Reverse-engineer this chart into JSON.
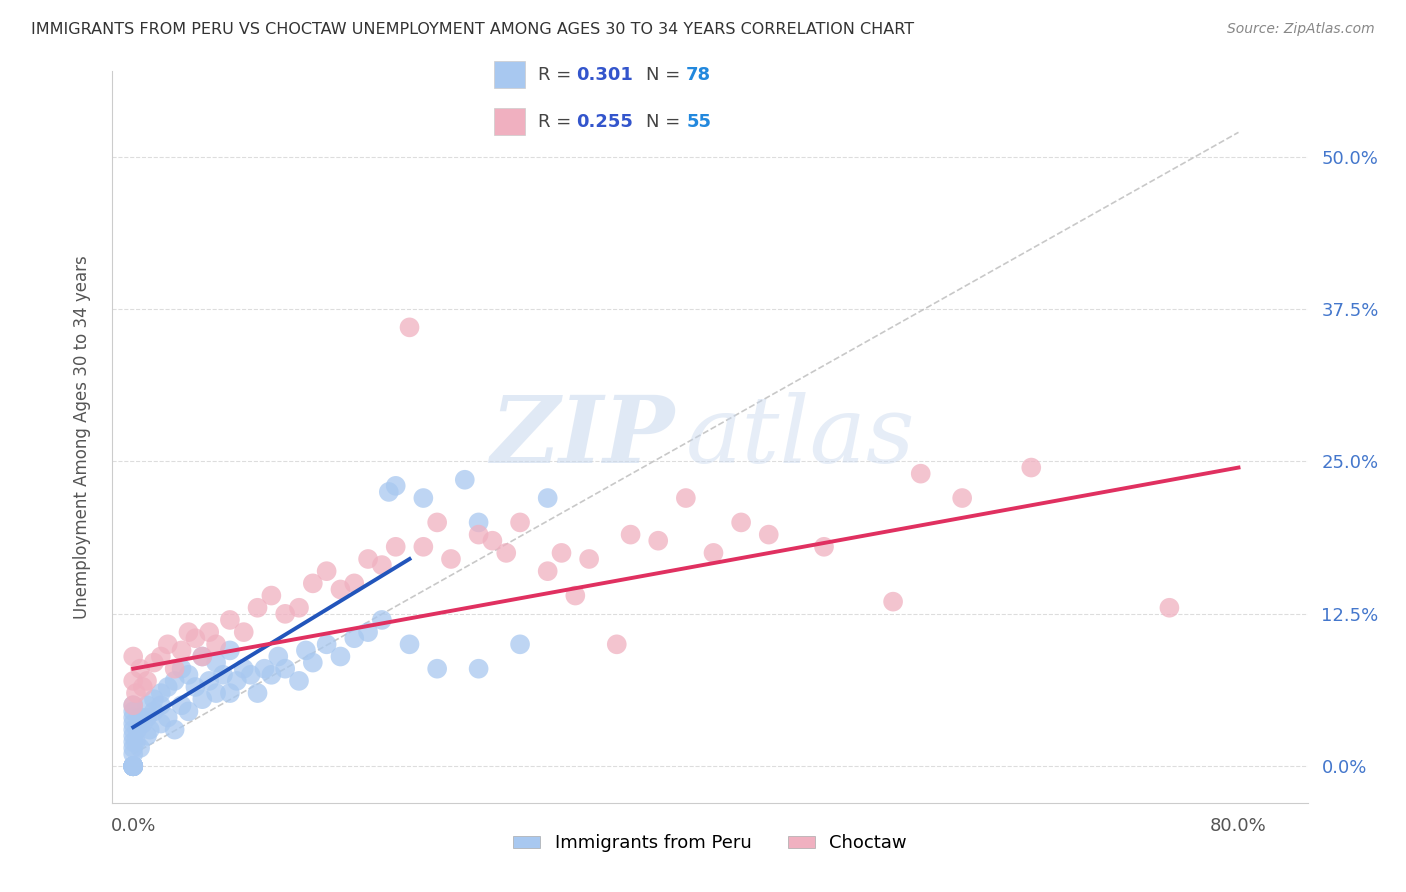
{
  "title": "IMMIGRANTS FROM PERU VS CHOCTAW UNEMPLOYMENT AMONG AGES 30 TO 34 YEARS CORRELATION CHART",
  "source": "Source: ZipAtlas.com",
  "ylabel": "Unemployment Among Ages 30 to 34 years",
  "xmin": -1.5,
  "xmax": 85,
  "ymin": -3,
  "ymax": 57,
  "watermark_zip": "ZIP",
  "watermark_atlas": "atlas",
  "series": [
    {
      "name": "Immigrants from Peru",
      "R": 0.301,
      "N": 78,
      "color": "#a8c8f0",
      "line_color": "#2255bb",
      "trend_start_x": 0,
      "trend_start_y": 3.2,
      "trend_end_x": 20,
      "trend_end_y": 17.0,
      "points_x": [
        0.0,
        0.0,
        0.0,
        0.0,
        0.0,
        0.0,
        0.0,
        0.0,
        0.0,
        0.0,
        0.0,
        0.0,
        0.0,
        0.0,
        0.0,
        0.0,
        0.0,
        0.0,
        0.0,
        0.0,
        0.0,
        0.2,
        0.3,
        0.5,
        0.5,
        0.7,
        1.0,
        1.0,
        1.0,
        1.2,
        1.5,
        1.5,
        2.0,
        2.0,
        2.0,
        2.5,
        2.5,
        3.0,
        3.0,
        3.5,
        3.5,
        4.0,
        4.0,
        4.5,
        5.0,
        5.0,
        5.5,
        6.0,
        6.0,
        6.5,
        7.0,
        7.0,
        7.5,
        8.0,
        8.5,
        9.0,
        9.5,
        10.0,
        10.5,
        11.0,
        12.0,
        12.5,
        13.0,
        14.0,
        15.0,
        16.0,
        17.0,
        18.0,
        18.5,
        19.0,
        20.0,
        21.0,
        22.0,
        24.0,
        25.0,
        25.0,
        28.0,
        30.0
      ],
      "points_y": [
        0.0,
        0.0,
        0.0,
        0.0,
        0.0,
        0.0,
        0.0,
        0.0,
        0.0,
        0.0,
        0.0,
        0.0,
        1.0,
        1.5,
        2.0,
        2.5,
        3.0,
        3.5,
        4.0,
        4.5,
        5.0,
        2.0,
        3.0,
        1.5,
        4.0,
        3.5,
        2.5,
        4.0,
        5.0,
        3.0,
        4.5,
        5.5,
        3.5,
        5.0,
        6.0,
        4.0,
        6.5,
        3.0,
        7.0,
        5.0,
        8.0,
        4.5,
        7.5,
        6.5,
        5.5,
        9.0,
        7.0,
        6.0,
        8.5,
        7.5,
        6.0,
        9.5,
        7.0,
        8.0,
        7.5,
        6.0,
        8.0,
        7.5,
        9.0,
        8.0,
        7.0,
        9.5,
        8.5,
        10.0,
        9.0,
        10.5,
        11.0,
        12.0,
        22.5,
        23.0,
        10.0,
        22.0,
        8.0,
        23.5,
        8.0,
        20.0,
        10.0,
        22.0
      ]
    },
    {
      "name": "Choctaw",
      "R": 0.255,
      "N": 55,
      "color": "#f0b0c0",
      "line_color": "#e03060",
      "trend_start_x": 0,
      "trend_start_y": 8.0,
      "trend_end_x": 80,
      "trend_end_y": 24.5,
      "points_x": [
        0.0,
        0.0,
        0.0,
        0.2,
        0.5,
        0.7,
        1.0,
        1.5,
        2.0,
        2.5,
        3.0,
        3.5,
        4.0,
        4.5,
        5.0,
        5.5,
        6.0,
        7.0,
        8.0,
        9.0,
        10.0,
        11.0,
        12.0,
        13.0,
        14.0,
        15.0,
        16.0,
        17.0,
        18.0,
        19.0,
        20.0,
        21.0,
        22.0,
        23.0,
        25.0,
        26.0,
        27.0,
        28.0,
        30.0,
        31.0,
        32.0,
        33.0,
        35.0,
        36.0,
        38.0,
        40.0,
        42.0,
        44.0,
        46.0,
        50.0,
        55.0,
        57.0,
        60.0,
        65.0,
        75.0
      ],
      "points_y": [
        5.0,
        7.0,
        9.0,
        6.0,
        8.0,
        6.5,
        7.0,
        8.5,
        9.0,
        10.0,
        8.0,
        9.5,
        11.0,
        10.5,
        9.0,
        11.0,
        10.0,
        12.0,
        11.0,
        13.0,
        14.0,
        12.5,
        13.0,
        15.0,
        16.0,
        14.5,
        15.0,
        17.0,
        16.5,
        18.0,
        36.0,
        18.0,
        20.0,
        17.0,
        19.0,
        18.5,
        17.5,
        20.0,
        16.0,
        17.5,
        14.0,
        17.0,
        10.0,
        19.0,
        18.5,
        22.0,
        17.5,
        20.0,
        19.0,
        18.0,
        13.5,
        24.0,
        22.0,
        24.5,
        13.0
      ]
    }
  ],
  "diagonal_line": {
    "start_x": 0,
    "start_y": 1,
    "end_x": 80,
    "end_y": 52,
    "color": "#bbbbbb",
    "linestyle": "dashed"
  },
  "legend": {
    "R_color": "#3355cc",
    "N_color": "#2288dd",
    "fontsize": 14
  },
  "background_color": "#ffffff",
  "grid_color": "#dddddd"
}
